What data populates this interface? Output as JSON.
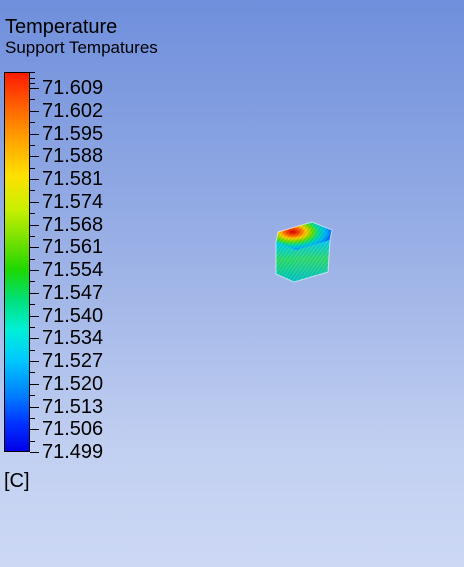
{
  "legend": {
    "title": "Temperature",
    "subtitle": "Support Tempatures",
    "unit": "[C]",
    "levels": [
      "71.609",
      "71.602",
      "71.595",
      "71.588",
      "71.581",
      "71.574",
      "71.568",
      "71.561",
      "71.554",
      "71.547",
      "71.540",
      "71.534",
      "71.527",
      "71.520",
      "71.513",
      "71.506",
      "71.499"
    ],
    "colors": {
      "max": "#ff1a00",
      "min": "#0000e8"
    }
  },
  "model": {
    "icon": "contour-body-icon"
  }
}
